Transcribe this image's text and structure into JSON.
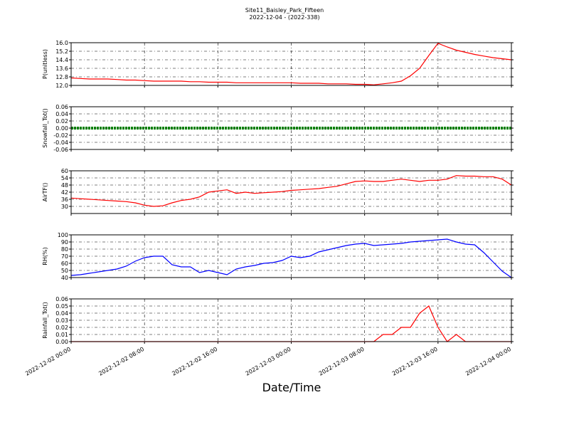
{
  "chart_data": [
    {
      "type": "line",
      "title": "Site11_Baisley_Park_Fifteen",
      "subtitle": "2022-12-04 - (2022-338)",
      "ylabel": "P(unitless)",
      "x": [
        "2022-12-02 00:00",
        "2022-12-02 01:00",
        "2022-12-02 02:00",
        "2022-12-02 03:00",
        "2022-12-02 04:00",
        "2022-12-02 05:00",
        "2022-12-02 06:00",
        "2022-12-02 07:00",
        "2022-12-02 08:00",
        "2022-12-02 09:00",
        "2022-12-02 10:00",
        "2022-12-02 11:00",
        "2022-12-02 12:00",
        "2022-12-02 13:00",
        "2022-12-02 14:00",
        "2022-12-02 15:00",
        "2022-12-02 16:00",
        "2022-12-02 17:00",
        "2022-12-02 18:00",
        "2022-12-02 19:00",
        "2022-12-02 20:00",
        "2022-12-02 21:00",
        "2022-12-02 22:00",
        "2022-12-02 23:00",
        "2022-12-03 00:00",
        "2022-12-03 01:00",
        "2022-12-03 02:00",
        "2022-12-03 03:00",
        "2022-12-03 04:00",
        "2022-12-03 05:00",
        "2022-12-03 06:00",
        "2022-12-03 07:00",
        "2022-12-03 08:00",
        "2022-12-03 09:00",
        "2022-12-03 10:00",
        "2022-12-03 11:00",
        "2022-12-03 12:00",
        "2022-12-03 13:00",
        "2022-12-03 14:00",
        "2022-12-03 15:00",
        "2022-12-03 16:00",
        "2022-12-03 17:00",
        "2022-12-03 18:00",
        "2022-12-03 19:00",
        "2022-12-03 20:00",
        "2022-12-03 21:00",
        "2022-12-03 22:00",
        "2022-12-03 23:00",
        "2022-12-04 00:00"
      ],
      "series": [
        {
          "color": "#ff0000",
          "values": [
            12.7,
            12.65,
            12.6,
            12.6,
            12.6,
            12.55,
            12.5,
            12.5,
            12.45,
            12.4,
            12.4,
            12.4,
            12.4,
            12.35,
            12.35,
            12.3,
            12.3,
            12.3,
            12.25,
            12.25,
            12.25,
            12.25,
            12.25,
            12.25,
            12.25,
            12.2,
            12.2,
            12.2,
            12.15,
            12.15,
            12.15,
            12.1,
            12.1,
            12.05,
            12.15,
            12.25,
            12.4,
            12.9,
            13.6,
            14.8,
            15.95,
            15.6,
            15.3,
            15.1,
            14.9,
            14.75,
            14.6,
            14.5,
            14.4
          ]
        }
      ],
      "xlim": [
        "2022-12-02 00:00",
        "2022-12-04 00:00"
      ],
      "xticks": [
        "2022-12-02 00:00",
        "2022-12-02 08:00",
        "2022-12-02 16:00",
        "2022-12-03 00:00",
        "2022-12-03 08:00",
        "2022-12-03 16:00",
        "2022-12-04 00:00"
      ],
      "ylim": [
        12,
        16
      ],
      "yticks": [
        {
          "value": 12,
          "label": "12.0"
        },
        {
          "value": 12.8,
          "label": "12.8"
        },
        {
          "value": 13.6,
          "label": "13.6"
        },
        {
          "value": 14.4,
          "label": "14.4"
        },
        {
          "value": 15.2,
          "label": "15.2"
        },
        {
          "value": 16,
          "label": "16.0"
        }
      ],
      "grid": true
    },
    {
      "type": "line",
      "ylabel": "Snowfall_Tot()",
      "x": [
        "2022-12-02 00:00",
        "2022-12-02 01:00",
        "2022-12-02 02:00",
        "2022-12-02 03:00",
        "2022-12-02 04:00",
        "2022-12-02 05:00",
        "2022-12-02 06:00",
        "2022-12-02 07:00",
        "2022-12-02 08:00",
        "2022-12-02 09:00",
        "2022-12-02 10:00",
        "2022-12-02 11:00",
        "2022-12-02 12:00",
        "2022-12-02 13:00",
        "2022-12-02 14:00",
        "2022-12-02 15:00",
        "2022-12-02 16:00",
        "2022-12-02 17:00",
        "2022-12-02 18:00",
        "2022-12-02 19:00",
        "2022-12-02 20:00",
        "2022-12-02 21:00",
        "2022-12-02 22:00",
        "2022-12-02 23:00",
        "2022-12-03 00:00",
        "2022-12-03 01:00",
        "2022-12-03 02:00",
        "2022-12-03 03:00",
        "2022-12-03 04:00",
        "2022-12-03 05:00",
        "2022-12-03 06:00",
        "2022-12-03 07:00",
        "2022-12-03 08:00",
        "2022-12-03 09:00",
        "2022-12-03 10:00",
        "2022-12-03 11:00",
        "2022-12-03 12:00",
        "2022-12-03 13:00",
        "2022-12-03 14:00",
        "2022-12-03 15:00",
        "2022-12-03 16:00",
        "2022-12-03 17:00",
        "2022-12-03 18:00",
        "2022-12-03 19:00",
        "2022-12-03 20:00",
        "2022-12-03 21:00",
        "2022-12-03 22:00",
        "2022-12-03 23:00",
        "2022-12-04 00:00"
      ],
      "series": [
        {
          "color": "#008000",
          "values": [
            0,
            0,
            0,
            0,
            0,
            0,
            0,
            0,
            0,
            0,
            0,
            0,
            0,
            0,
            0,
            0,
            0,
            0,
            0,
            0,
            0,
            0,
            0,
            0,
            0,
            0,
            0,
            0,
            0,
            0,
            0,
            0,
            0,
            0,
            0,
            0,
            0,
            0,
            0,
            0,
            0,
            0,
            0,
            0,
            0,
            0,
            0,
            0,
            0
          ]
        }
      ],
      "xlim": [
        "2022-12-02 00:00",
        "2022-12-04 00:00"
      ],
      "xticks": [
        "2022-12-02 00:00",
        "2022-12-02 08:00",
        "2022-12-02 16:00",
        "2022-12-03 00:00",
        "2022-12-03 08:00",
        "2022-12-03 16:00",
        "2022-12-04 00:00"
      ],
      "ylim": [
        -0.06,
        0.06
      ],
      "yticks": [
        {
          "value": -0.06,
          "label": "-0.06"
        },
        {
          "value": -0.04,
          "label": "-0.04"
        },
        {
          "value": -0.02,
          "label": "-0.02"
        },
        {
          "value": 0,
          "label": "0.00"
        },
        {
          "value": 0.02,
          "label": "0.02"
        },
        {
          "value": 0.04,
          "label": "0.04"
        },
        {
          "value": 0.06,
          "label": "0.06"
        }
      ],
      "grid": true
    },
    {
      "type": "line",
      "ylabel": "AirTF()",
      "x": [
        "2022-12-02 00:00",
        "2022-12-02 01:00",
        "2022-12-02 02:00",
        "2022-12-02 03:00",
        "2022-12-02 04:00",
        "2022-12-02 05:00",
        "2022-12-02 06:00",
        "2022-12-02 07:00",
        "2022-12-02 08:00",
        "2022-12-02 09:00",
        "2022-12-02 10:00",
        "2022-12-02 11:00",
        "2022-12-02 12:00",
        "2022-12-02 13:00",
        "2022-12-02 14:00",
        "2022-12-02 15:00",
        "2022-12-02 16:00",
        "2022-12-02 17:00",
        "2022-12-02 18:00",
        "2022-12-02 19:00",
        "2022-12-02 20:00",
        "2022-12-02 21:00",
        "2022-12-02 22:00",
        "2022-12-02 23:00",
        "2022-12-03 00:00",
        "2022-12-03 01:00",
        "2022-12-03 02:00",
        "2022-12-03 03:00",
        "2022-12-03 04:00",
        "2022-12-03 05:00",
        "2022-12-03 06:00",
        "2022-12-03 07:00",
        "2022-12-03 08:00",
        "2022-12-03 09:00",
        "2022-12-03 10:00",
        "2022-12-03 11:00",
        "2022-12-03 12:00",
        "2022-12-03 13:00",
        "2022-12-03 14:00",
        "2022-12-03 15:00",
        "2022-12-03 16:00",
        "2022-12-03 17:00",
        "2022-12-03 18:00",
        "2022-12-03 19:00",
        "2022-12-03 20:00",
        "2022-12-03 21:00",
        "2022-12-03 22:00",
        "2022-12-03 23:00",
        "2022-12-04 00:00"
      ],
      "series": [
        {
          "color": "#ff0000",
          "values": [
            37,
            36.5,
            36,
            35.5,
            35,
            34.5,
            34,
            33,
            31,
            30,
            30.5,
            33,
            35,
            36,
            38,
            42,
            43,
            44,
            41,
            42,
            41,
            41.5,
            42,
            42.5,
            43.5,
            44,
            44.5,
            45,
            46,
            47,
            49,
            51,
            51.5,
            51,
            51,
            52,
            53,
            52,
            51,
            52,
            52,
            53,
            56,
            55.5,
            55.5,
            55,
            55,
            53,
            48
          ]
        }
      ],
      "xlim": [
        "2022-12-02 00:00",
        "2022-12-04 00:00"
      ],
      "xticks": [
        "2022-12-02 00:00",
        "2022-12-02 08:00",
        "2022-12-02 16:00",
        "2022-12-03 00:00",
        "2022-12-03 08:00",
        "2022-12-03 16:00",
        "2022-12-04 00:00"
      ],
      "ylim": [
        24,
        60
      ],
      "yticks": [
        30,
        36,
        42,
        48,
        54,
        60
      ],
      "grid": true
    },
    {
      "type": "line",
      "ylabel": "RH(%)",
      "x": [
        "2022-12-02 00:00",
        "2022-12-02 01:00",
        "2022-12-02 02:00",
        "2022-12-02 03:00",
        "2022-12-02 04:00",
        "2022-12-02 05:00",
        "2022-12-02 06:00",
        "2022-12-02 07:00",
        "2022-12-02 08:00",
        "2022-12-02 09:00",
        "2022-12-02 10:00",
        "2022-12-02 11:00",
        "2022-12-02 12:00",
        "2022-12-02 13:00",
        "2022-12-02 14:00",
        "2022-12-02 15:00",
        "2022-12-02 16:00",
        "2022-12-02 17:00",
        "2022-12-02 18:00",
        "2022-12-02 19:00",
        "2022-12-02 20:00",
        "2022-12-02 21:00",
        "2022-12-02 22:00",
        "2022-12-02 23:00",
        "2022-12-03 00:00",
        "2022-12-03 01:00",
        "2022-12-03 02:00",
        "2022-12-03 03:00",
        "2022-12-03 04:00",
        "2022-12-03 05:00",
        "2022-12-03 06:00",
        "2022-12-03 07:00",
        "2022-12-03 08:00",
        "2022-12-03 09:00",
        "2022-12-03 10:00",
        "2022-12-03 11:00",
        "2022-12-03 12:00",
        "2022-12-03 13:00",
        "2022-12-03 14:00",
        "2022-12-03 15:00",
        "2022-12-03 16:00",
        "2022-12-03 17:00",
        "2022-12-03 18:00",
        "2022-12-03 19:00",
        "2022-12-03 20:00",
        "2022-12-03 21:00",
        "2022-12-03 22:00",
        "2022-12-03 23:00",
        "2022-12-04 00:00"
      ],
      "series": [
        {
          "color": "#0000ff",
          "values": [
            43,
            44,
            46,
            48,
            50,
            52,
            56,
            63,
            68,
            70,
            70,
            58,
            55,
            55,
            47,
            50,
            47,
            44,
            52,
            55,
            57,
            60,
            61,
            64,
            70,
            68,
            70,
            76,
            79,
            82,
            85,
            87,
            88,
            85,
            86,
            87,
            88,
            90,
            91,
            92,
            93,
            94,
            90,
            87,
            86,
            75,
            62,
            49,
            40
          ]
        }
      ],
      "xlim": [
        "2022-12-02 00:00",
        "2022-12-04 00:00"
      ],
      "xticks": [
        "2022-12-02 00:00",
        "2022-12-02 08:00",
        "2022-12-02 16:00",
        "2022-12-03 00:00",
        "2022-12-03 08:00",
        "2022-12-03 16:00",
        "2022-12-04 00:00"
      ],
      "ylim": [
        40,
        100
      ],
      "yticks": [
        40,
        50,
        60,
        70,
        80,
        90,
        100
      ],
      "grid": true
    },
    {
      "type": "line",
      "ylabel": "Rainfall_Tot()",
      "xlabel": "Date/Time",
      "x": [
        "2022-12-02 00:00",
        "2022-12-02 01:00",
        "2022-12-02 02:00",
        "2022-12-02 03:00",
        "2022-12-02 04:00",
        "2022-12-02 05:00",
        "2022-12-02 06:00",
        "2022-12-02 07:00",
        "2022-12-02 08:00",
        "2022-12-02 09:00",
        "2022-12-02 10:00",
        "2022-12-02 11:00",
        "2022-12-02 12:00",
        "2022-12-02 13:00",
        "2022-12-02 14:00",
        "2022-12-02 15:00",
        "2022-12-02 16:00",
        "2022-12-02 17:00",
        "2022-12-02 18:00",
        "2022-12-02 19:00",
        "2022-12-02 20:00",
        "2022-12-02 21:00",
        "2022-12-02 22:00",
        "2022-12-02 23:00",
        "2022-12-03 00:00",
        "2022-12-03 01:00",
        "2022-12-03 02:00",
        "2022-12-03 03:00",
        "2022-12-03 04:00",
        "2022-12-03 05:00",
        "2022-12-03 06:00",
        "2022-12-03 07:00",
        "2022-12-03 08:00",
        "2022-12-03 09:00",
        "2022-12-03 10:00",
        "2022-12-03 11:00",
        "2022-12-03 12:00",
        "2022-12-03 13:00",
        "2022-12-03 14:00",
        "2022-12-03 15:00",
        "2022-12-03 16:00",
        "2022-12-03 17:00",
        "2022-12-03 18:00",
        "2022-12-03 19:00",
        "2022-12-03 20:00",
        "2022-12-03 21:00",
        "2022-12-03 22:00",
        "2022-12-03 23:00",
        "2022-12-04 00:00"
      ],
      "series": [
        {
          "color": "#ff0000",
          "values": [
            0,
            0,
            0,
            0,
            0,
            0,
            0,
            0,
            0,
            0,
            0,
            0,
            0,
            0,
            0,
            0,
            0,
            0,
            0,
            0,
            0,
            0,
            0,
            0,
            0,
            0,
            0,
            0,
            0,
            0,
            0,
            0,
            0,
            0,
            0.01,
            0.01,
            0.02,
            0.02,
            0.04,
            0.05,
            0.02,
            0,
            0.01,
            0,
            0,
            0,
            0,
            0,
            0
          ]
        }
      ],
      "xlim": [
        "2022-12-02 00:00",
        "2022-12-04 00:00"
      ],
      "xticks": [
        "2022-12-02 00:00",
        "2022-12-02 08:00",
        "2022-12-02 16:00",
        "2022-12-03 00:00",
        "2022-12-03 08:00",
        "2022-12-03 16:00",
        "2022-12-04 00:00"
      ],
      "ylim": [
        0,
        0.06
      ],
      "yticks": [
        {
          "value": 0,
          "label": "0.00"
        },
        {
          "value": 0.01,
          "label": "0.01"
        },
        {
          "value": 0.02,
          "label": "0.02"
        },
        {
          "value": 0.03,
          "label": "0.03"
        },
        {
          "value": 0.04,
          "label": "0.04"
        },
        {
          "value": 0.05,
          "label": "0.05"
        },
        {
          "value": 0.06,
          "label": "0.06"
        }
      ],
      "grid": true
    }
  ]
}
